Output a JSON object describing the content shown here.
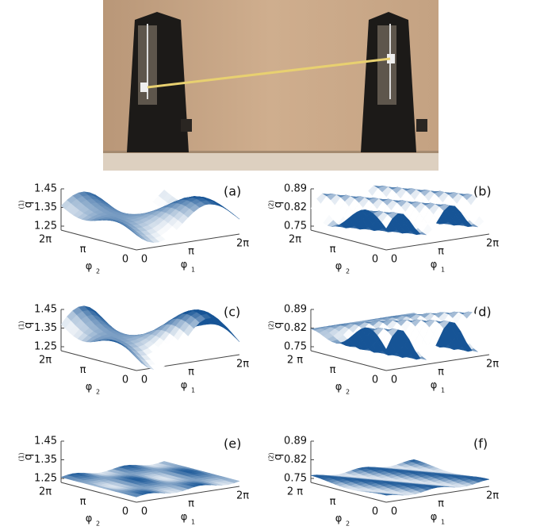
{
  "panels": [
    {
      "label": "(a)",
      "z_label": "q",
      "z_superscript": "(1)",
      "z_ticks": [
        "1.45",
        "1.35",
        "1.25"
      ],
      "phi2_label": "φ",
      "phi2_subscript": "2",
      "phi2_ticks": [
        "2π",
        "π",
        "0"
      ],
      "phi1_label": "φ",
      "phi1_subscript": "1",
      "phi1_ticks": [
        "0",
        "π",
        "2π"
      ]
    },
    {
      "label": "(b)",
      "z_label": "q",
      "z_superscript": "(2)",
      "z_ticks": [
        "0.89",
        "0.82",
        "0.75"
      ],
      "phi2_label": "φ",
      "phi2_subscript": "2",
      "phi2_ticks": [
        "2π",
        "π",
        "0"
      ],
      "phi1_label": "φ",
      "phi1_subscript": "1",
      "phi1_ticks": [
        "0",
        "π",
        "2π"
      ]
    },
    {
      "label": "(c)",
      "z_label": "q",
      "z_superscript": "(1)",
      "z_ticks": [
        "1.45",
        "1.35",
        "1.25"
      ],
      "phi2_label": "φ",
      "phi2_subscript": "2",
      "phi2_ticks": [
        "2π",
        "π",
        "0"
      ],
      "phi1_label": "φ",
      "phi1_subscript": "1",
      "phi1_ticks": [
        "0",
        "π",
        "2π"
      ]
    },
    {
      "label": "(d)",
      "z_label": "q",
      "z_superscript": "(2)",
      "z_ticks": [
        "0.89",
        "0.82",
        "0.75"
      ],
      "phi2_label": "φ",
      "phi2_subscript": "2",
      "phi2_ticks": [
        "2 π",
        "π",
        "0"
      ],
      "phi1_label": "φ",
      "phi1_subscript": "1",
      "phi1_ticks": [
        "0",
        "π",
        "2π"
      ]
    },
    {
      "label": "(e)",
      "z_label": "q",
      "z_superscript": "(1)",
      "z_ticks": [
        "1.45",
        "1.35",
        "1.25"
      ],
      "phi2_label": "φ",
      "phi2_subscript": "2",
      "phi2_ticks": [
        "2π",
        "π",
        "0"
      ],
      "phi1_label": "φ",
      "phi1_subscript": "1",
      "phi1_ticks": [
        "0",
        "π",
        "2π"
      ]
    },
    {
      "label": "(f)",
      "z_label": "q",
      "z_superscript": "(2)",
      "z_ticks": [
        "0.89",
        "0.82",
        "0.75"
      ],
      "phi2_label": "φ",
      "phi2_subscript": "2",
      "phi2_ticks": [
        "2 π",
        "π",
        "0"
      ],
      "phi1_label": "φ",
      "phi1_subscript": "1",
      "phi1_ticks": [
        "0",
        "π",
        "2π"
      ]
    }
  ]
}
